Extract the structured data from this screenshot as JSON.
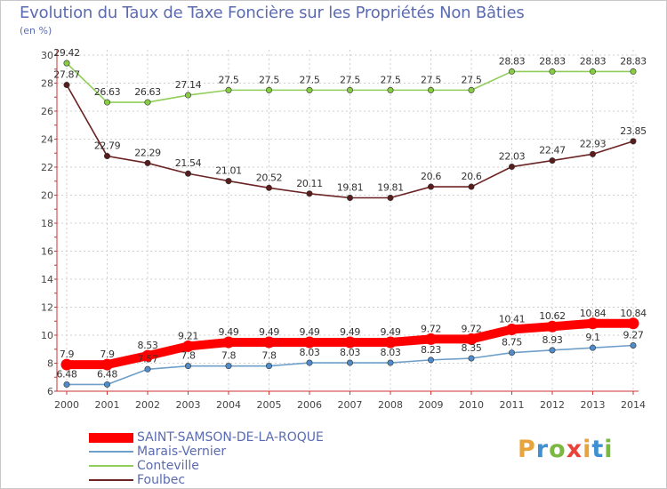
{
  "title": "Evolution du Taux de Taxe Foncière sur les Propriétés Non Bâties",
  "unit": "(en %)",
  "logo": {
    "text": "Proxiti",
    "letter_colors": [
      "#e8a33a",
      "#3f8fd1",
      "#7bb83f",
      "#e8433a",
      "#e8a33a",
      "#3f8fd1",
      "#7bb83f"
    ]
  },
  "chart_data": {
    "type": "line",
    "title": "Evolution du Taux de Taxe Foncière sur les Propriétés Non Bâties",
    "ylabel": "(en %)",
    "xlabel": "",
    "ylim": [
      6,
      30
    ],
    "yticks": [
      6,
      8,
      10,
      12,
      14,
      16,
      18,
      20,
      22,
      24,
      26,
      28,
      30
    ],
    "grid": true,
    "legend_position": "bottom-left",
    "x": [
      "2000",
      "2001",
      "2002",
      "2003",
      "2004",
      "2005",
      "2006",
      "2007",
      "2008",
      "2009",
      "2010",
      "2011",
      "2012",
      "2013",
      "2014"
    ],
    "series": [
      {
        "name": "Conteville",
        "color": "#8fce5a",
        "marker": "#88cc44",
        "values": [
          29.42,
          26.63,
          26.63,
          27.14,
          27.5,
          27.5,
          27.5,
          27.5,
          27.5,
          27.5,
          27.5,
          28.83,
          28.83,
          28.83,
          28.83
        ],
        "labels": [
          "29.42",
          "26.63",
          "26.63",
          "27.14",
          "27.5",
          "27.5",
          "27.5",
          "27.5",
          "27.5",
          "27.5",
          "27.5",
          "28.83",
          "28.83",
          "28.83",
          "28.83"
        ]
      },
      {
        "name": "Foulbec",
        "color": "#6b2323",
        "marker": "#5a1d1d",
        "values": [
          27.87,
          22.79,
          22.29,
          21.54,
          21.01,
          20.52,
          20.11,
          19.81,
          19.81,
          20.6,
          20.6,
          22.03,
          22.47,
          22.93,
          23.85
        ],
        "labels": [
          "27.87",
          "22.79",
          "22.29",
          "21.54",
          "21.01",
          "20.52",
          "20.11",
          "19.81",
          "19.81",
          "20.6",
          "20.6",
          "22.03",
          "22.47",
          "22.93",
          "23.85"
        ]
      },
      {
        "name": "Marais-Vernier",
        "color": "#6e9fc9",
        "marker": "#4f8cc9",
        "values": [
          6.48,
          6.48,
          7.57,
          7.8,
          7.8,
          7.8,
          8.03,
          8.03,
          8.03,
          8.23,
          8.35,
          8.75,
          8.93,
          9.1,
          9.27
        ],
        "labels": [
          "6.48",
          "6.48",
          "7.57",
          "7.8",
          "7.8",
          "7.8",
          "8.03",
          "8.03",
          "8.03",
          "8.23",
          "8.35",
          "8.75",
          "8.93",
          "9.1",
          "9.27"
        ]
      },
      {
        "name": "SAINT-SAMSON-DE-LA-ROQUE",
        "color": "#ff0000",
        "marker": "#ff0000",
        "values": [
          7.9,
          7.9,
          8.53,
          9.21,
          9.49,
          9.49,
          9.49,
          9.49,
          9.49,
          9.72,
          9.72,
          10.41,
          10.62,
          10.84,
          10.84
        ],
        "labels": [
          "7.9",
          "7.9",
          "8.53",
          "9.21",
          "9.49",
          "9.49",
          "9.49",
          "9.49",
          "9.49",
          "9.72",
          "9.72",
          "10.41",
          "10.62",
          "10.84",
          "10.84"
        ]
      }
    ]
  },
  "legend": [
    {
      "name": "SAINT-SAMSON-DE-LA-ROQUE",
      "color": "#ff0000",
      "width": 11
    },
    {
      "name": "Marais-Vernier",
      "color": "#6e9fc9",
      "width": 2
    },
    {
      "name": "Conteville",
      "color": "#8fce5a",
      "width": 2
    },
    {
      "name": "Foulbec",
      "color": "#6b2323",
      "width": 2
    }
  ]
}
